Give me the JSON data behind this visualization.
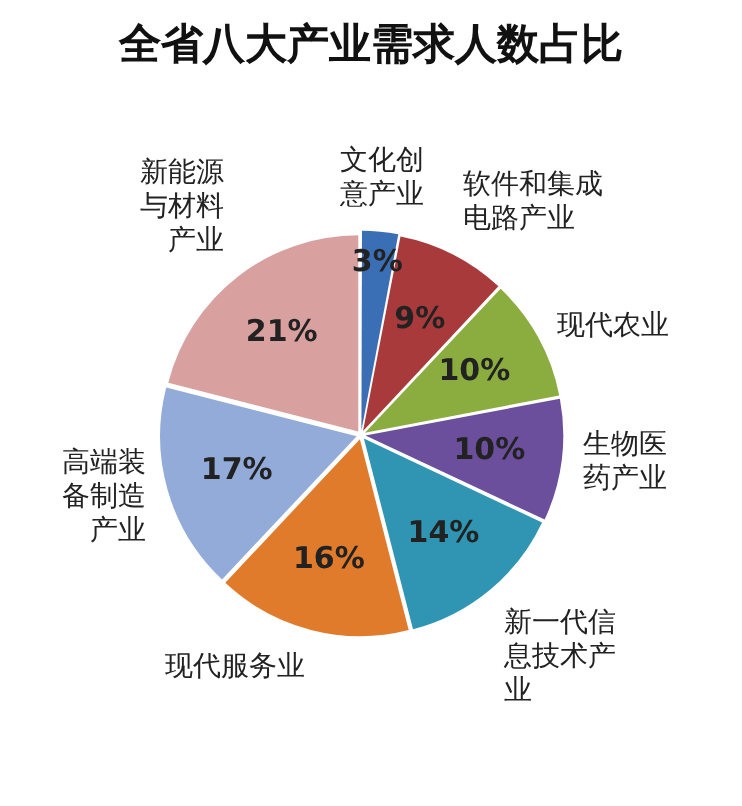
{
  "chart_data": {
    "type": "pie",
    "title": "全省八大产业需求人数占比",
    "categories": [
      "文化创意产业",
      "软件和集成电路产业",
      "现代农业",
      "生物医药产业",
      "新一代信息技术产业",
      "现代服务业",
      "高端装备制造产业",
      "新能源与材料产业"
    ],
    "values": [
      3,
      9,
      10,
      10,
      14,
      16,
      17,
      21
    ],
    "value_labels": [
      "3%",
      "9%",
      "10%",
      "10%",
      "14%",
      "16%",
      "17%",
      "21%"
    ],
    "colors": [
      "#3a6fb5",
      "#a83a3c",
      "#8bad3f",
      "#6b4f9c",
      "#2f95b3",
      "#e07b2c",
      "#92abd8",
      "#d9a0a0"
    ],
    "legend": false
  }
}
